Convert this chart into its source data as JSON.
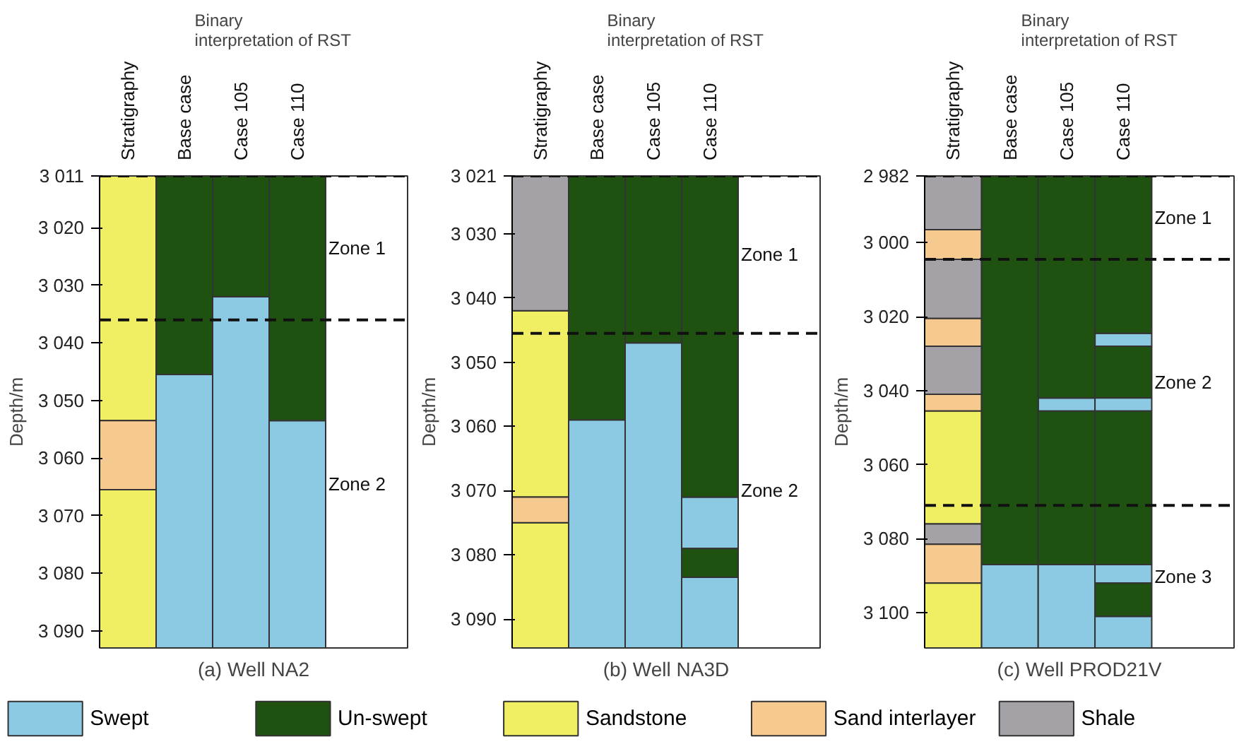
{
  "chart_data": [
    {
      "type": "bar",
      "title": "(a) Well NA2",
      "ylabel": "Depth/m",
      "categories": [
        "Stratigraphy",
        "Base case",
        "Case 105",
        "Case 110"
      ],
      "ylim": [
        3093,
        3011
      ],
      "yticks": [
        {
          "value": 3011,
          "label": "3 011"
        },
        {
          "value": 3020,
          "label": "3 020"
        },
        {
          "value": 3030,
          "label": "3 030"
        },
        {
          "value": 3040,
          "label": "3 040"
        },
        {
          "value": 3050,
          "label": "3 050"
        },
        {
          "value": 3060,
          "label": "3 060"
        },
        {
          "value": 3070,
          "label": "3 070"
        },
        {
          "value": 3080,
          "label": "3 080"
        },
        {
          "value": 3090,
          "label": "3 090"
        }
      ],
      "series": [
        {
          "name": "Swept",
          "color": "#8ccae4",
          "base": [
            null,
            3045.5,
            3032,
            3053.5
          ],
          "values": [
            null,
            47.5,
            61,
            39.5
          ]
        },
        {
          "name": "Un-swept",
          "color": "#1f5210",
          "base": [
            null,
            3011,
            3011,
            3011
          ],
          "values": [
            null,
            34.5,
            21,
            42.5
          ]
        },
        {
          "name": "Sandstone",
          "color": "#f0ee62",
          "base": [
            3011,
            null,
            null,
            null
          ],
          "values": [
            42.5,
            null,
            null,
            null
          ]
        },
        {
          "name": "Sand interlayer",
          "color": "#f6c98e",
          "base": [
            3053.5,
            null,
            null,
            null
          ],
          "values": [
            12,
            null,
            null,
            null
          ]
        },
        {
          "color": "#f0ee62",
          "base": [
            3065.5,
            null,
            null,
            null
          ],
          "values": [
            27.5,
            null,
            null,
            null
          ]
        }
      ],
      "ref_lines": [
        {
          "axis": "y",
          "value": 3011,
          "line_style": "dashed"
        },
        {
          "axis": "y",
          "value": 3036,
          "line_style": "dashed"
        }
      ],
      "annotations": [
        "Binary interpretation of RST",
        "Zone 1",
        "Zone 2"
      ],
      "grid": false,
      "legend": "bottom"
    },
    {
      "type": "bar",
      "title": "(b) Well NA3D",
      "ylabel": "Depth/m",
      "categories": [
        "Stratigraphy",
        "Base case",
        "Case 105",
        "Case 110"
      ],
      "ylim": [
        3094.5,
        3021
      ],
      "yticks": [
        {
          "value": 3021,
          "label": "3 021"
        },
        {
          "value": 3030,
          "label": "3 030"
        },
        {
          "value": 3040,
          "label": "3 040"
        },
        {
          "value": 3050,
          "label": "3 050"
        },
        {
          "value": 3060,
          "label": "3 060"
        },
        {
          "value": 3070,
          "label": "3 070"
        },
        {
          "value": 3080,
          "label": "3 080"
        },
        {
          "value": 3090,
          "label": "3 090"
        }
      ],
      "series": [
        {
          "color": "#8ccae4",
          "base": [
            null,
            3059,
            3047,
            3071
          ],
          "values": [
            null,
            35.5,
            47.5,
            8
          ]
        },
        {
          "color": "#1f5210",
          "base": [
            null,
            3021,
            3021,
            3021
          ],
          "values": [
            null,
            38,
            26,
            50
          ]
        },
        {
          "color": "#8ccae4",
          "base": [
            null,
            null,
            null,
            3083.5
          ],
          "values": [
            null,
            null,
            null,
            11
          ]
        },
        {
          "color": "#1f5210",
          "base": [
            null,
            null,
            null,
            3079
          ],
          "values": [
            null,
            null,
            null,
            4.5
          ]
        },
        {
          "color": "#f0ee62",
          "base": [
            3042,
            null,
            null,
            null
          ],
          "values": [
            29,
            null,
            null,
            null
          ]
        },
        {
          "color": "#f0ee62",
          "base": [
            3075,
            null,
            null,
            null
          ],
          "values": [
            19.5,
            null,
            null,
            null
          ]
        },
        {
          "color": "#f6c98e",
          "base": [
            3071,
            null,
            null,
            null
          ],
          "values": [
            4,
            null,
            null,
            null
          ]
        },
        {
          "name": "Shale",
          "color": "#a4a2a6",
          "base": [
            3021,
            null,
            null,
            null
          ],
          "values": [
            21,
            null,
            null,
            null
          ]
        }
      ],
      "ref_lines": [
        {
          "axis": "y",
          "value": 3021,
          "line_style": "dashed"
        },
        {
          "axis": "y",
          "value": 3045.5,
          "line_style": "dashed"
        }
      ],
      "annotations": [
        "Binary interpretation of RST",
        "Zone 1",
        "Zone 2"
      ],
      "grid": false,
      "legend": "bottom"
    },
    {
      "type": "bar",
      "title": "(c) Well PROD21V",
      "ylabel": "Depth/m",
      "categories": [
        "Stratigraphy",
        "Base case",
        "Case 105",
        "Case 110"
      ],
      "ylim": [
        3109.5,
        2982
      ],
      "yticks": [
        {
          "value": 2982,
          "label": "2 982"
        },
        {
          "value": 3000,
          "label": "3 000"
        },
        {
          "value": 3020,
          "label": "3 020"
        },
        {
          "value": 3040,
          "label": "3 040"
        },
        {
          "value": 3060,
          "label": "3 060"
        },
        {
          "value": 3080,
          "label": "3 080"
        },
        {
          "value": 3100,
          "label": "3 100"
        }
      ],
      "series": [
        {
          "color": "#8ccae4",
          "base": [
            null,
            3087,
            3042,
            3024.5
          ],
          "values": [
            null,
            22.5,
            3.5,
            3.5
          ]
        },
        {
          "color": "#1f5210",
          "base": [
            null,
            2982,
            2982,
            2982
          ],
          "values": [
            null,
            105,
            60,
            42.5
          ]
        },
        {
          "color": "#1f5210",
          "base": [
            null,
            null,
            3045.5,
            3028
          ],
          "values": [
            null,
            null,
            41.5,
            14
          ]
        },
        {
          "color": "#8ccae4",
          "base": [
            null,
            null,
            3087,
            3042
          ],
          "values": [
            null,
            null,
            22.5,
            3.5
          ]
        },
        {
          "color": "#1f5210",
          "base": [
            null,
            null,
            null,
            3045.5
          ],
          "values": [
            null,
            null,
            null,
            41.5
          ]
        },
        {
          "color": "#8ccae4",
          "base": [
            null,
            null,
            null,
            3087
          ],
          "values": [
            null,
            null,
            null,
            5
          ]
        },
        {
          "color": "#1f5210",
          "base": [
            null,
            null,
            null,
            3092
          ],
          "values": [
            null,
            null,
            null,
            9
          ]
        },
        {
          "color": "#8ccae4",
          "base": [
            null,
            null,
            null,
            3101
          ],
          "values": [
            null,
            null,
            null,
            8.5
          ]
        },
        {
          "color": "#a4a2a6",
          "base": [
            2982,
            null,
            null,
            null
          ],
          "values": [
            14.5,
            null,
            null,
            null
          ]
        },
        {
          "color": "#f6c98e",
          "base": [
            2996.5,
            null,
            null,
            null
          ],
          "values": [
            8,
            null,
            null,
            null
          ]
        },
        {
          "color": "#a4a2a6",
          "base": [
            3004.5,
            null,
            null,
            null
          ],
          "values": [
            16,
            null,
            null,
            null
          ]
        },
        {
          "color": "#f6c98e",
          "base": [
            3020.5,
            null,
            null,
            null
          ],
          "values": [
            7.5,
            null,
            null,
            null
          ]
        },
        {
          "color": "#a4a2a6",
          "base": [
            3028,
            null,
            null,
            null
          ],
          "values": [
            13,
            null,
            null,
            null
          ]
        },
        {
          "color": "#f6c98e",
          "base": [
            3041,
            null,
            null,
            null
          ],
          "values": [
            4.5,
            null,
            null,
            null
          ]
        },
        {
          "color": "#f0ee62",
          "base": [
            3045.5,
            null,
            null,
            null
          ],
          "values": [
            30.5,
            null,
            null,
            null
          ]
        },
        {
          "color": "#a4a2a6",
          "base": [
            3076,
            null,
            null,
            null
          ],
          "values": [
            5.5,
            null,
            null,
            null
          ]
        },
        {
          "color": "#f6c98e",
          "base": [
            3081.5,
            null,
            null,
            null
          ],
          "values": [
            10.5,
            null,
            null,
            null
          ]
        },
        {
          "color": "#f0ee62",
          "base": [
            3092,
            null,
            null,
            null
          ],
          "values": [
            17.5,
            null,
            null,
            null
          ]
        }
      ],
      "ref_lines": [
        {
          "axis": "y",
          "value": 2982,
          "line_style": "dashed"
        },
        {
          "axis": "y",
          "value": 3004.5,
          "line_style": "dashed"
        },
        {
          "axis": "y",
          "value": 3071,
          "line_style": "dashed"
        }
      ],
      "annotations": [
        "Binary interpretation of RST",
        "Zone 1",
        "Zone 2",
        "Zone 3"
      ],
      "grid": false,
      "legend": "bottom"
    }
  ]
}
